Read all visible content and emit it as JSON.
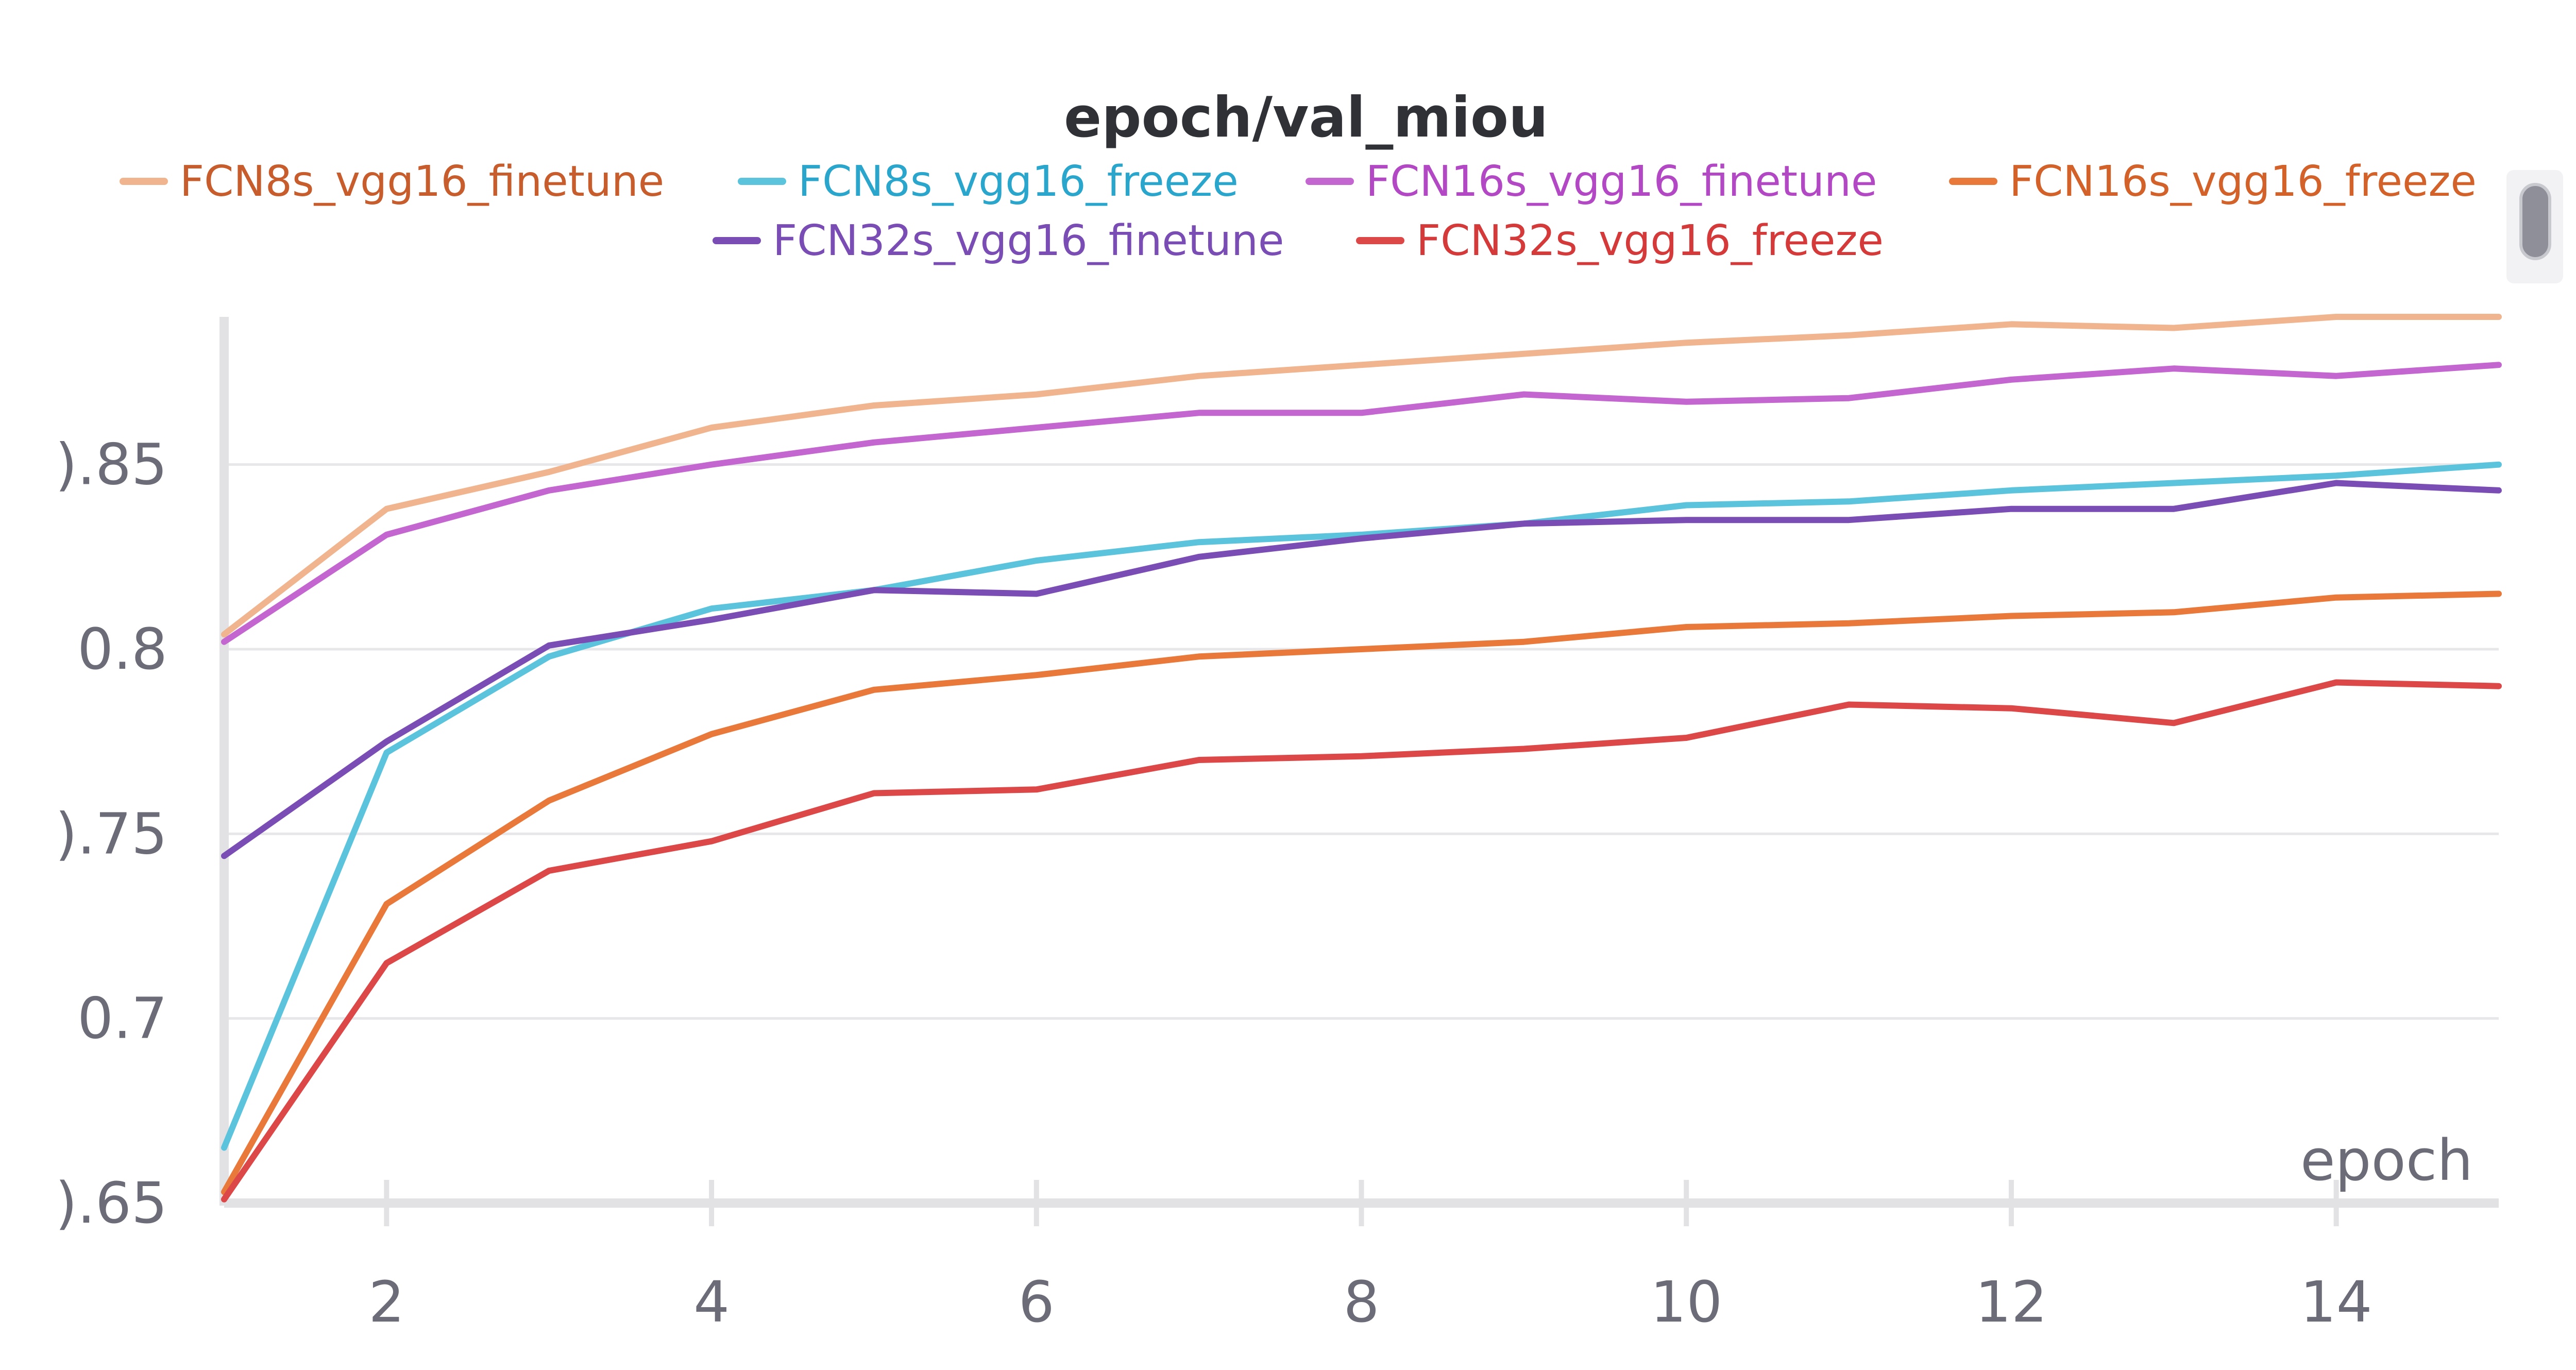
{
  "chart_data": {
    "type": "line",
    "title": "epoch/val_miou",
    "xlabel": "epoch",
    "ylabel": "",
    "xlim": [
      1,
      15
    ],
    "ylim": [
      0.65,
      0.89
    ],
    "x_ticks": [
      2,
      4,
      6,
      8,
      10,
      12,
      14
    ],
    "y_ticks": [
      0.65,
      0.7,
      0.75,
      0.8,
      0.85
    ],
    "y_tick_labels": [
      ").65",
      "0.7",
      ").75",
      "0.8",
      ").85"
    ],
    "grid": true,
    "legend_position": "top",
    "x": [
      1,
      2,
      3,
      4,
      5,
      6,
      7,
      8,
      9,
      10,
      11,
      12,
      13,
      14,
      15
    ],
    "series": [
      {
        "name": "FCN8s_vgg16_finetune",
        "color": "#f0b48e",
        "label_color": "#c75d2c",
        "values": [
          0.804,
          0.838,
          0.848,
          0.86,
          0.866,
          0.869,
          0.874,
          0.877,
          0.88,
          0.883,
          0.885,
          0.888,
          0.887,
          0.89,
          0.89
        ]
      },
      {
        "name": "FCN8s_vgg16_freeze",
        "color": "#5bc4dc",
        "label_color": "#2aa6cc",
        "values": [
          0.665,
          0.772,
          0.798,
          0.811,
          0.816,
          0.824,
          0.829,
          0.831,
          0.834,
          0.839,
          0.84,
          0.843,
          0.845,
          0.847,
          0.85
        ]
      },
      {
        "name": "FCN16s_vgg16_finetune",
        "color": "#c466cf",
        "label_color": "#b348c5",
        "values": [
          0.802,
          0.831,
          0.843,
          0.85,
          0.856,
          0.86,
          0.864,
          0.864,
          0.869,
          0.867,
          0.868,
          0.873,
          0.876,
          0.874,
          0.877
        ]
      },
      {
        "name": "FCN16s_vgg16_freeze",
        "color": "#e8793a",
        "label_color": "#d2622a",
        "values": [
          0.653,
          0.731,
          0.759,
          0.777,
          0.789,
          0.793,
          0.798,
          0.8,
          0.802,
          0.806,
          0.807,
          0.809,
          0.81,
          0.814,
          0.815
        ]
      },
      {
        "name": "FCN32s_vgg16_finetune",
        "color": "#7a4db5",
        "label_color": "#7a4db5",
        "values": [
          0.744,
          0.775,
          0.801,
          0.808,
          0.816,
          0.815,
          0.825,
          0.83,
          0.834,
          0.835,
          0.835,
          0.838,
          0.838,
          0.845,
          0.843
        ]
      },
      {
        "name": "FCN32s_vgg16_freeze",
        "color": "#dc4848",
        "label_color": "#d43a3a",
        "values": [
          0.651,
          0.715,
          0.74,
          0.748,
          0.761,
          0.762,
          0.77,
          0.771,
          0.773,
          0.776,
          0.785,
          0.784,
          0.78,
          0.791,
          0.79
        ]
      }
    ]
  }
}
